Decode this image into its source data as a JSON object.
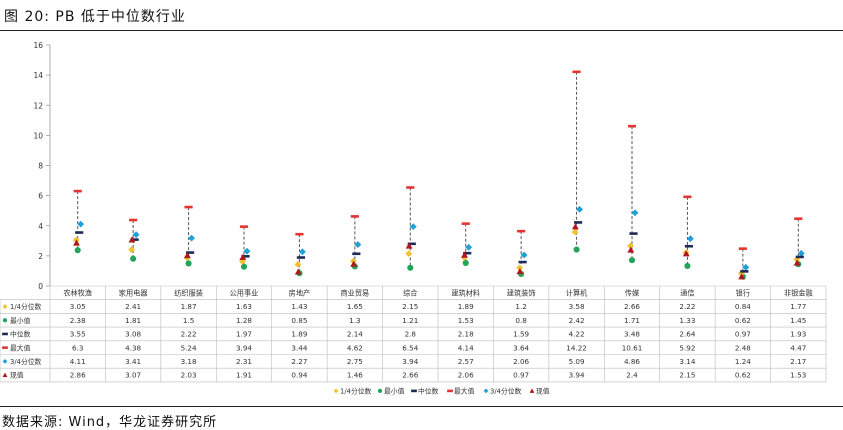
{
  "figure_title": "图 20: PB 低于中位数行业",
  "source_note": "数据来源: Wind，华龙证券研究所",
  "chart_data": {
    "type": "scatter",
    "title": "",
    "xlabel": "",
    "ylabel": "",
    "ylim": [
      0,
      16
    ],
    "yticks": [
      0,
      2,
      4,
      6,
      8,
      10,
      12,
      14,
      16
    ],
    "grid": false,
    "legend_position": "bottom",
    "categories": [
      "农林牧渔",
      "家用电器",
      "纺织服装",
      "公用事业",
      "房地产",
      "商业贸易",
      "综合",
      "建筑材料",
      "建筑装饰",
      "计算机",
      "传媒",
      "通信",
      "银行",
      "非银金融"
    ],
    "series": [
      {
        "name": "1/4分位数",
        "marker": "diamond",
        "color": "#f2c12e",
        "values": [
          3.05,
          2.41,
          1.87,
          1.63,
          1.43,
          1.65,
          2.15,
          1.89,
          1.2,
          3.58,
          2.66,
          2.22,
          0.84,
          1.77
        ]
      },
      {
        "name": "最小值",
        "marker": "circle",
        "color": "#22a55a",
        "values": [
          2.38,
          1.81,
          1.5,
          1.28,
          0.85,
          1.3,
          1.21,
          1.53,
          0.8,
          2.42,
          1.71,
          1.33,
          0.62,
          1.45
        ]
      },
      {
        "name": "中位数",
        "marker": "dash",
        "color": "#1f2a56",
        "values": [
          3.55,
          3.08,
          2.22,
          1.97,
          1.89,
          2.14,
          2.8,
          2.18,
          1.59,
          4.22,
          3.48,
          2.64,
          0.97,
          1.93
        ]
      },
      {
        "name": "最大值",
        "marker": "dash",
        "color": "#e3342f",
        "values": [
          6.3,
          4.38,
          5.24,
          3.94,
          3.44,
          4.62,
          6.54,
          4.14,
          3.64,
          14.22,
          10.61,
          5.92,
          2.48,
          4.47
        ]
      },
      {
        "name": "3/4分位数",
        "marker": "diamond",
        "color": "#1fa0d8",
        "values": [
          4.11,
          3.41,
          3.18,
          2.31,
          2.27,
          2.75,
          3.94,
          2.57,
          2.06,
          5.09,
          4.86,
          3.14,
          1.24,
          2.17
        ]
      },
      {
        "name": "现值",
        "marker": "triangle",
        "color": "#b0161b",
        "values": [
          2.86,
          3.07,
          2.03,
          1.91,
          0.94,
          1.46,
          2.66,
          2.06,
          0.97,
          3.94,
          2.4,
          2.15,
          0.62,
          1.53
        ]
      }
    ]
  }
}
